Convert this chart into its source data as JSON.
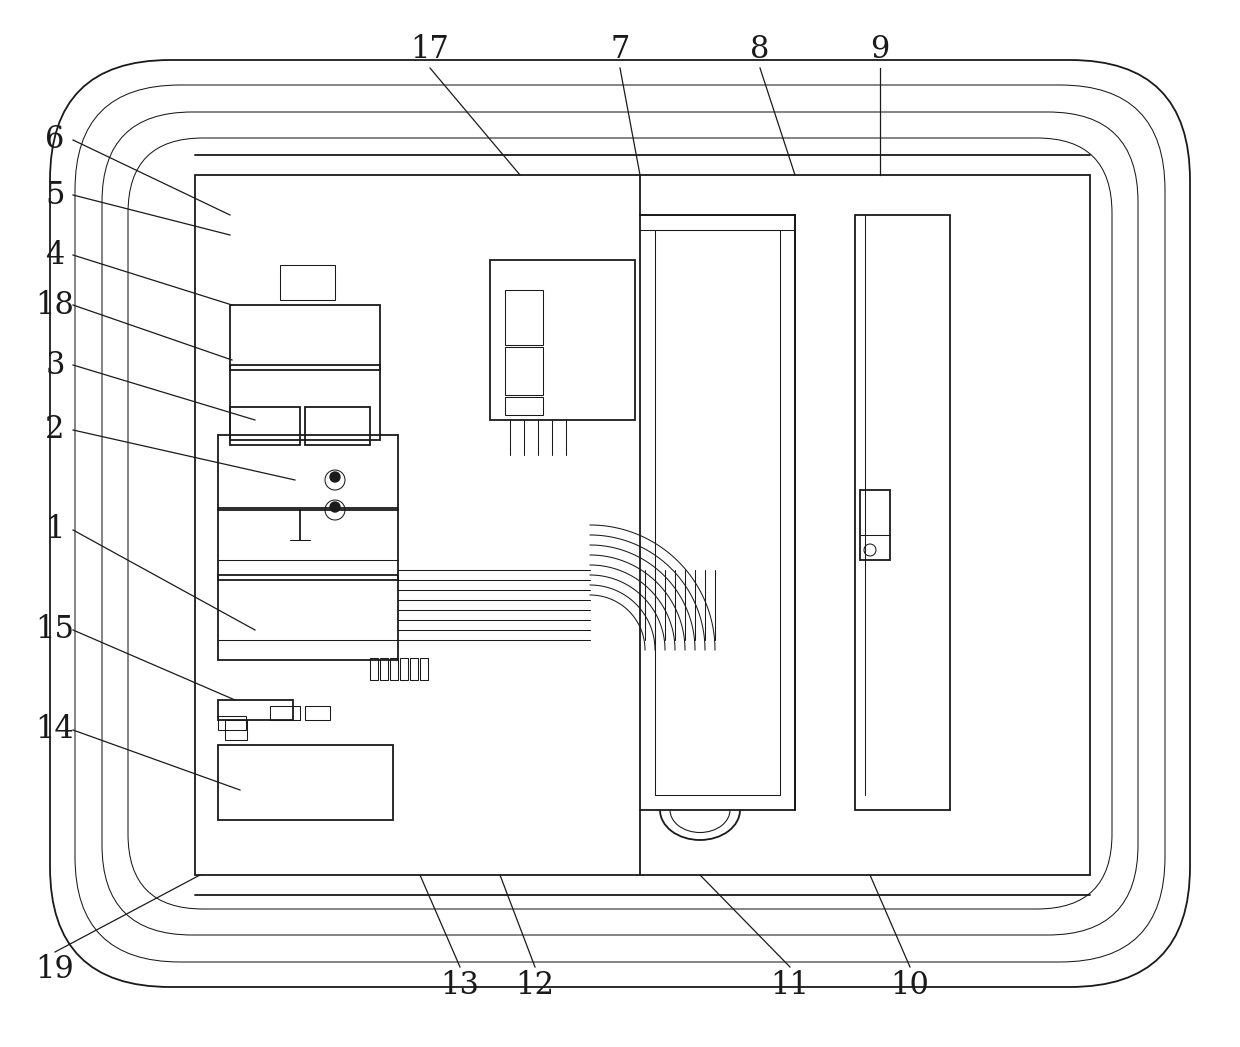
{
  "bg_color": "#ffffff",
  "line_color": "#1a1a1a",
  "lw": 1.3,
  "tlw": 0.75,
  "fig_width": 12.4,
  "fig_height": 10.47
}
